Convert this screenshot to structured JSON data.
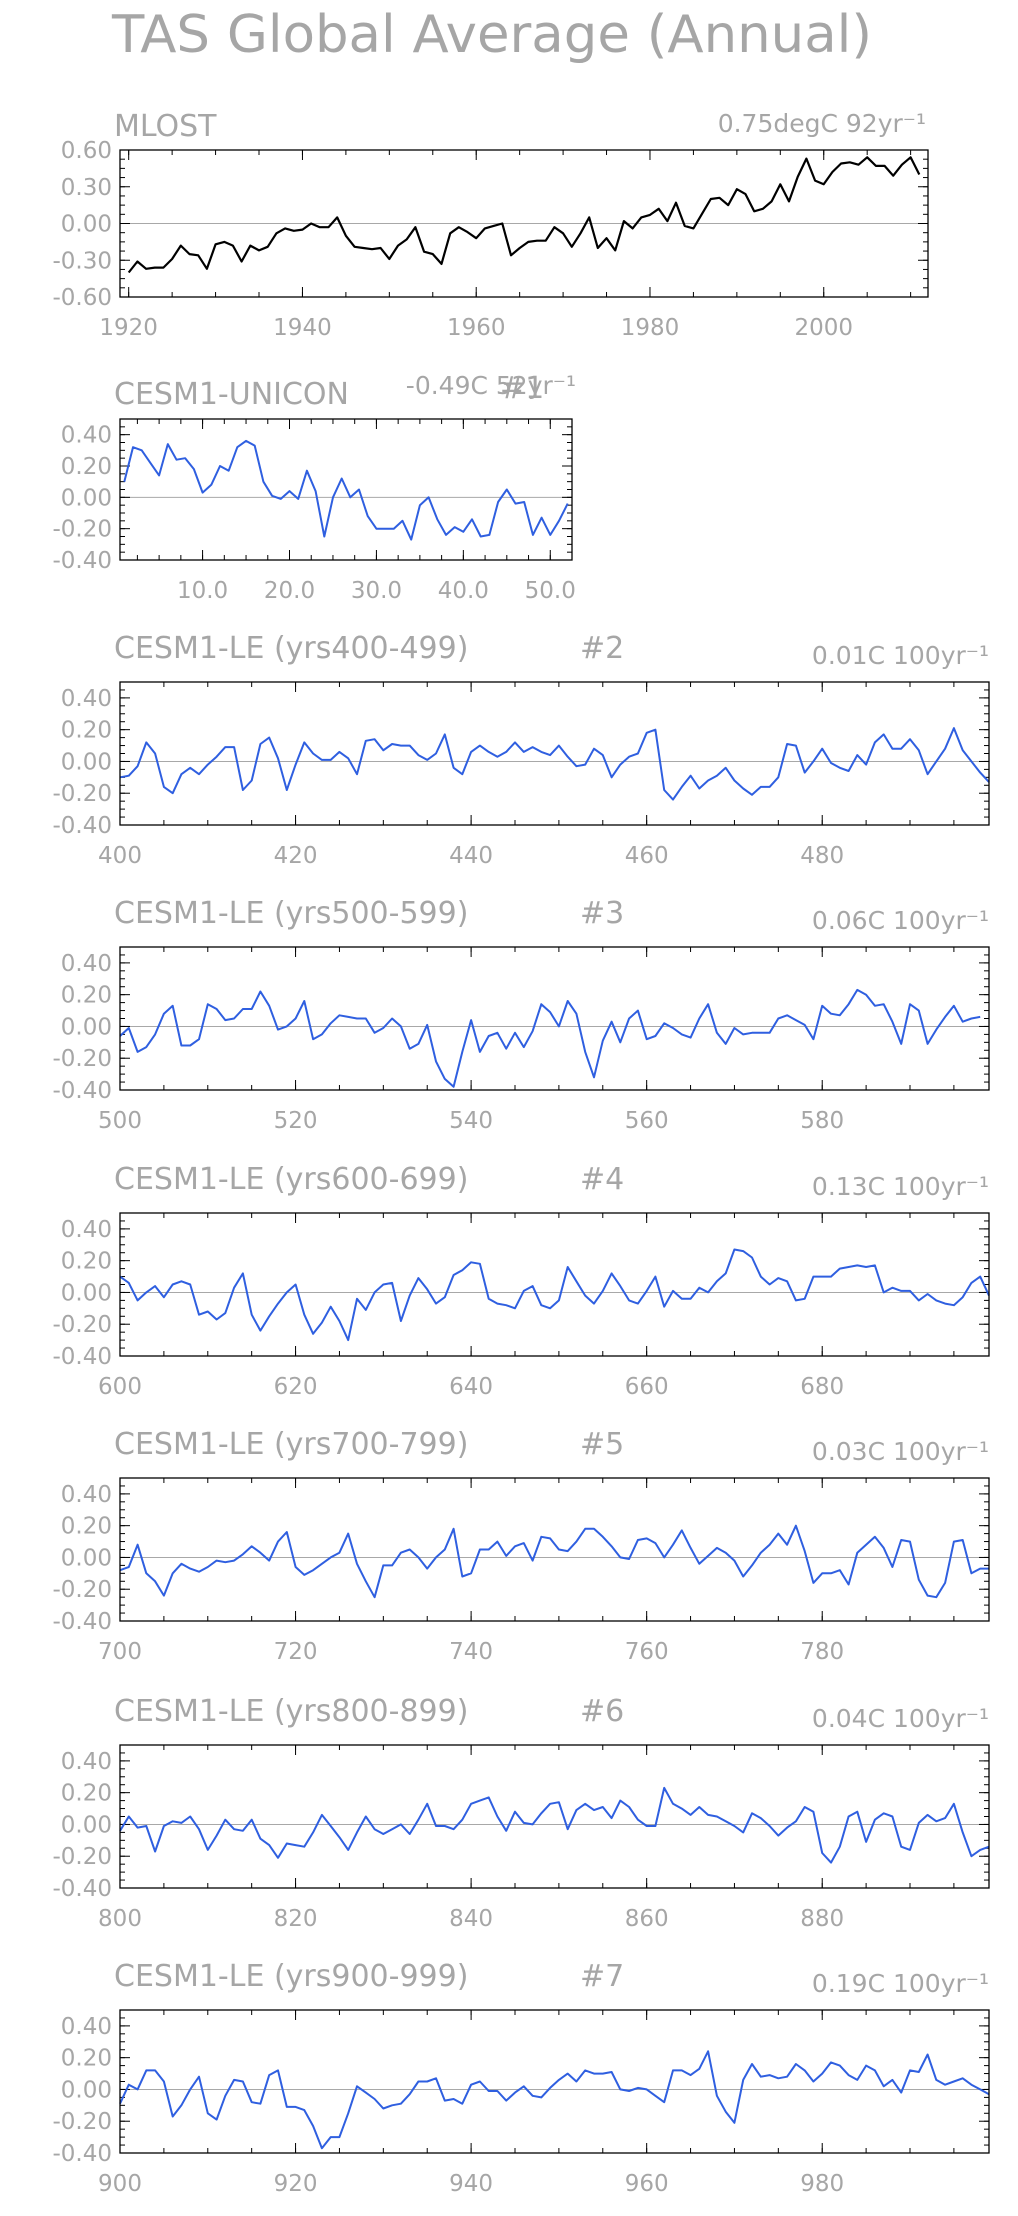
{
  "figure": {
    "title": "TAS Global Average (Annual)"
  },
  "colors": {
    "obs_line": "#000000",
    "model_line": "#2f5fe0",
    "zero_line": "#a8a8a8",
    "text": "#a6a6a6"
  },
  "chart_data": [
    {
      "type": "line",
      "name": "MLOST",
      "trend_label": "0.75degC 92yr⁻¹",
      "xlim": [
        1919,
        2012
      ],
      "ylim": [
        -0.6,
        0.6
      ],
      "xticks": [
        1920,
        1940,
        1960,
        1980,
        2000
      ],
      "xtick_labels": [
        "1920",
        "1940",
        "1960",
        "1980",
        "2000"
      ],
      "yticks": [
        -0.6,
        -0.3,
        0.0,
        0.3,
        0.6
      ],
      "ytick_labels": [
        "-0.60",
        "-0.30",
        "0.00",
        "0.30",
        "0.60"
      ],
      "x_start": 1920,
      "x_step": 1,
      "color": "#000000",
      "values": [
        -0.4,
        -0.31,
        -0.37,
        -0.36,
        -0.36,
        -0.29,
        -0.18,
        -0.25,
        -0.26,
        -0.37,
        -0.17,
        -0.15,
        -0.18,
        -0.31,
        -0.18,
        -0.22,
        -0.19,
        -0.08,
        -0.04,
        -0.06,
        -0.05,
        0.0,
        -0.03,
        -0.03,
        0.05,
        -0.1,
        -0.19,
        -0.2,
        -0.21,
        -0.2,
        -0.29,
        -0.18,
        -0.13,
        -0.03,
        -0.23,
        -0.25,
        -0.33,
        -0.08,
        -0.03,
        -0.07,
        -0.12,
        -0.04,
        -0.02,
        0.0,
        -0.26,
        -0.2,
        -0.15,
        -0.14,
        -0.14,
        -0.03,
        -0.08,
        -0.19,
        -0.08,
        0.05,
        -0.2,
        -0.12,
        -0.22,
        0.02,
        -0.04,
        0.05,
        0.07,
        0.12,
        0.02,
        0.17,
        -0.02,
        -0.04,
        0.08,
        0.2,
        0.21,
        0.15,
        0.28,
        0.24,
        0.1,
        0.12,
        0.18,
        0.32,
        0.18,
        0.38,
        0.53,
        0.35,
        0.32,
        0.42,
        0.49,
        0.5,
        0.48,
        0.54,
        0.47,
        0.47,
        0.39,
        0.48,
        0.54,
        0.4
      ]
    },
    {
      "type": "line",
      "name": "CESM1-UNICON",
      "number_label": "#1",
      "trend_label": "-0.49C 52yr⁻¹",
      "xlim": [
        0.5,
        52.5
      ],
      "ylim": [
        -0.4,
        0.5
      ],
      "xticks": [
        10,
        20,
        30,
        40,
        50
      ],
      "xtick_labels": [
        "10.0",
        "20.0",
        "30.0",
        "40.0",
        "50.0"
      ],
      "yticks": [
        -0.4,
        -0.2,
        0.0,
        0.2,
        0.4
      ],
      "ytick_labels": [
        "-0.40",
        "-0.20",
        "0.00",
        "0.20",
        "0.40"
      ],
      "x_start": 1,
      "x_step": 1,
      "color": "#2f5fe0",
      "values": [
        0.1,
        0.32,
        0.3,
        0.22,
        0.14,
        0.34,
        0.24,
        0.25,
        0.18,
        0.03,
        0.08,
        0.2,
        0.17,
        0.32,
        0.36,
        0.33,
        0.1,
        0.01,
        -0.01,
        0.04,
        -0.01,
        0.17,
        0.04,
        -0.25,
        0.0,
        0.12,
        0.0,
        0.05,
        -0.12,
        -0.2,
        -0.2,
        -0.2,
        -0.15,
        -0.27,
        -0.05,
        0.0,
        -0.14,
        -0.24,
        -0.19,
        -0.22,
        -0.14,
        -0.25,
        -0.24,
        -0.03,
        0.05,
        -0.04,
        -0.03,
        -0.24,
        -0.13,
        -0.24,
        -0.15,
        -0.04
      ]
    },
    {
      "type": "line",
      "name": "CESM1-LE (yrs400-499)",
      "number_label": "#2",
      "trend_label": "0.01C 100yr⁻¹",
      "xlim": [
        400,
        499
      ],
      "ylim": [
        -0.4,
        0.5
      ],
      "xticks": [
        400,
        420,
        440,
        460,
        480
      ],
      "xtick_labels": [
        "400",
        "420",
        "440",
        "460",
        "480"
      ],
      "yticks": [
        -0.4,
        -0.2,
        0.0,
        0.2,
        0.4
      ],
      "ytick_labels": [
        "-0.40",
        "-0.20",
        "0.00",
        "0.20",
        "0.40"
      ],
      "x_start": 400,
      "x_step": 1,
      "color": "#2f5fe0",
      "values": [
        -0.1,
        -0.09,
        -0.03,
        0.12,
        0.05,
        -0.16,
        -0.2,
        -0.08,
        -0.04,
        -0.08,
        -0.02,
        0.03,
        0.09,
        0.09,
        -0.18,
        -0.12,
        0.11,
        0.15,
        0.02,
        -0.18,
        -0.02,
        0.12,
        0.05,
        0.01,
        0.01,
        0.06,
        0.02,
        -0.08,
        0.13,
        0.14,
        0.07,
        0.11,
        0.1,
        0.1,
        0.04,
        0.01,
        0.05,
        0.17,
        -0.04,
        -0.08,
        0.06,
        0.1,
        0.06,
        0.03,
        0.06,
        0.12,
        0.06,
        0.09,
        0.06,
        0.04,
        0.1,
        0.03,
        -0.03,
        -0.02,
        0.08,
        0.04,
        -0.1,
        -0.02,
        0.03,
        0.05,
        0.18,
        0.2,
        -0.18,
        -0.24,
        -0.16,
        -0.09,
        -0.17,
        -0.12,
        -0.09,
        -0.04,
        -0.12,
        -0.17,
        -0.21,
        -0.16,
        -0.16,
        -0.1,
        0.11,
        0.1,
        -0.07,
        0.0,
        0.08,
        -0.01,
        -0.04,
        -0.06,
        0.04,
        -0.02,
        0.12,
        0.17,
        0.08,
        0.08,
        0.14,
        0.07,
        -0.08,
        0.0,
        0.08,
        0.21,
        0.07,
        0.0,
        -0.07,
        -0.13
      ]
    },
    {
      "type": "line",
      "name": "CESM1-LE (yrs500-599)",
      "number_label": "#3",
      "trend_label": "0.06C 100yr⁻¹",
      "xlim": [
        500,
        599
      ],
      "ylim": [
        -0.4,
        0.5
      ],
      "xticks": [
        500,
        520,
        540,
        560,
        580
      ],
      "xtick_labels": [
        "500",
        "520",
        "540",
        "560",
        "580"
      ],
      "yticks": [
        -0.4,
        -0.2,
        0.0,
        0.2,
        0.4
      ],
      "ytick_labels": [
        "-0.40",
        "-0.20",
        "0.00",
        "0.20",
        "0.40"
      ],
      "x_start": 500,
      "x_step": 1,
      "color": "#2f5fe0",
      "values": [
        -0.06,
        -0.01,
        -0.16,
        -0.13,
        -0.05,
        0.08,
        0.13,
        -0.12,
        -0.12,
        -0.08,
        0.14,
        0.11,
        0.04,
        0.05,
        0.11,
        0.11,
        0.22,
        0.13,
        -0.02,
        0.0,
        0.05,
        0.16,
        -0.08,
        -0.05,
        0.02,
        0.07,
        0.06,
        0.05,
        0.05,
        -0.04,
        -0.01,
        0.05,
        0.0,
        -0.14,
        -0.11,
        0.01,
        -0.22,
        -0.33,
        -0.38,
        -0.16,
        0.04,
        -0.16,
        -0.06,
        -0.04,
        -0.14,
        -0.04,
        -0.13,
        -0.03,
        0.14,
        0.09,
        0.0,
        0.16,
        0.08,
        -0.16,
        -0.32,
        -0.09,
        0.03,
        -0.1,
        0.05,
        0.1,
        -0.08,
        -0.06,
        0.02,
        -0.01,
        -0.05,
        -0.07,
        0.05,
        0.14,
        -0.04,
        -0.11,
        -0.01,
        -0.05,
        -0.04,
        -0.04,
        -0.04,
        0.05,
        0.07,
        0.04,
        0.01,
        -0.08,
        0.13,
        0.08,
        0.07,
        0.14,
        0.23,
        0.2,
        0.13,
        0.14,
        0.03,
        -0.11,
        0.14,
        0.1,
        -0.11,
        -0.02,
        0.06,
        0.13,
        0.03,
        0.05,
        0.06
      ]
    },
    {
      "type": "line",
      "name": "CESM1-LE (yrs600-699)",
      "number_label": "#4",
      "trend_label": "0.13C 100yr⁻¹",
      "xlim": [
        600,
        699
      ],
      "ylim": [
        -0.4,
        0.5
      ],
      "xticks": [
        600,
        620,
        640,
        660,
        680
      ],
      "xtick_labels": [
        "600",
        "620",
        "640",
        "660",
        "680"
      ],
      "yticks": [
        -0.4,
        -0.2,
        0.0,
        0.2,
        0.4
      ],
      "ytick_labels": [
        "-0.40",
        "-0.20",
        "0.00",
        "0.20",
        "0.40"
      ],
      "x_start": 600,
      "x_step": 1,
      "color": "#2f5fe0",
      "values": [
        0.1,
        0.06,
        -0.05,
        0.0,
        0.04,
        -0.03,
        0.05,
        0.07,
        0.05,
        -0.14,
        -0.12,
        -0.17,
        -0.13,
        0.03,
        0.12,
        -0.14,
        -0.24,
        -0.15,
        -0.07,
        0.0,
        0.05,
        -0.14,
        -0.26,
        -0.19,
        -0.09,
        -0.18,
        -0.3,
        -0.04,
        -0.11,
        0.0,
        0.05,
        0.06,
        -0.18,
        -0.02,
        0.09,
        0.02,
        -0.07,
        -0.03,
        0.11,
        0.14,
        0.19,
        0.18,
        -0.04,
        -0.07,
        -0.08,
        -0.1,
        0.01,
        0.04,
        -0.08,
        -0.1,
        -0.05,
        0.16,
        0.07,
        -0.02,
        -0.07,
        0.01,
        0.12,
        0.04,
        -0.05,
        -0.07,
        0.01,
        0.1,
        -0.09,
        0.01,
        -0.04,
        -0.04,
        0.03,
        0.0,
        0.07,
        0.12,
        0.27,
        0.26,
        0.22,
        0.1,
        0.05,
        0.09,
        0.07,
        -0.05,
        -0.04,
        0.1,
        0.1,
        0.1,
        0.15,
        0.16,
        0.17,
        0.16,
        0.17,
        0.0,
        0.03,
        0.01,
        0.01,
        -0.05,
        -0.01,
        -0.05,
        -0.07,
        -0.08,
        -0.03,
        0.06,
        0.1,
        -0.02
      ]
    },
    {
      "type": "line",
      "name": "CESM1-LE (yrs700-799)",
      "number_label": "#5",
      "trend_label": "0.03C 100yr⁻¹",
      "xlim": [
        700,
        799
      ],
      "ylim": [
        -0.4,
        0.5
      ],
      "xticks": [
        700,
        720,
        740,
        760,
        780
      ],
      "xtick_labels": [
        "700",
        "720",
        "740",
        "760",
        "780"
      ],
      "yticks": [
        -0.4,
        -0.2,
        0.0,
        0.2,
        0.4
      ],
      "ytick_labels": [
        "-0.40",
        "-0.20",
        "0.00",
        "0.20",
        "0.40"
      ],
      "x_start": 700,
      "x_step": 1,
      "color": "#2f5fe0",
      "values": [
        -0.08,
        -0.06,
        0.08,
        -0.1,
        -0.15,
        -0.24,
        -0.1,
        -0.04,
        -0.07,
        -0.09,
        -0.06,
        -0.02,
        -0.03,
        -0.02,
        0.02,
        0.07,
        0.03,
        -0.02,
        0.1,
        0.16,
        -0.06,
        -0.11,
        -0.08,
        -0.04,
        0.0,
        0.03,
        0.15,
        -0.04,
        -0.15,
        -0.25,
        -0.05,
        -0.05,
        0.03,
        0.05,
        0.0,
        -0.07,
        0.0,
        0.05,
        0.18,
        -0.12,
        -0.1,
        0.05,
        0.05,
        0.1,
        0.01,
        0.07,
        0.09,
        -0.02,
        0.13,
        0.12,
        0.05,
        0.04,
        0.1,
        0.18,
        0.18,
        0.13,
        0.07,
        0.0,
        -0.01,
        0.11,
        0.12,
        0.09,
        0.0,
        0.08,
        0.17,
        0.06,
        -0.04,
        0.01,
        0.06,
        0.03,
        -0.02,
        -0.12,
        -0.05,
        0.03,
        0.08,
        0.15,
        0.08,
        0.2,
        0.04,
        -0.16,
        -0.1,
        -0.1,
        -0.08,
        -0.17,
        0.03,
        0.08,
        0.13,
        0.06,
        -0.06,
        0.11,
        0.1,
        -0.14,
        -0.24,
        -0.25,
        -0.16,
        0.1,
        0.11,
        -0.1,
        -0.07,
        -0.07
      ]
    },
    {
      "type": "line",
      "name": "CESM1-LE (yrs800-899)",
      "number_label": "#6",
      "trend_label": "0.04C 100yr⁻¹",
      "xlim": [
        800,
        899
      ],
      "ylim": [
        -0.4,
        0.5
      ],
      "xticks": [
        800,
        820,
        840,
        860,
        880
      ],
      "xtick_labels": [
        "800",
        "820",
        "840",
        "860",
        "880"
      ],
      "yticks": [
        -0.4,
        -0.2,
        0.0,
        0.2,
        0.4
      ],
      "ytick_labels": [
        "-0.40",
        "-0.20",
        "0.00",
        "0.20",
        "0.40"
      ],
      "x_start": 800,
      "x_step": 1,
      "color": "#2f5fe0",
      "values": [
        -0.04,
        0.05,
        -0.02,
        -0.01,
        -0.17,
        -0.01,
        0.02,
        0.01,
        0.05,
        -0.03,
        -0.16,
        -0.07,
        0.03,
        -0.03,
        -0.04,
        0.03,
        -0.09,
        -0.13,
        -0.21,
        -0.12,
        -0.13,
        -0.14,
        -0.05,
        0.06,
        -0.01,
        -0.08,
        -0.16,
        -0.05,
        0.05,
        -0.03,
        -0.06,
        -0.03,
        0.0,
        -0.06,
        0.03,
        0.13,
        -0.01,
        -0.01,
        -0.03,
        0.03,
        0.13,
        0.15,
        0.17,
        0.05,
        -0.04,
        0.08,
        0.01,
        0.0,
        0.07,
        0.13,
        0.14,
        -0.03,
        0.09,
        0.13,
        0.09,
        0.11,
        0.04,
        0.15,
        0.11,
        0.03,
        -0.01,
        -0.01,
        0.23,
        0.13,
        0.1,
        0.06,
        0.11,
        0.06,
        0.05,
        0.02,
        -0.01,
        -0.05,
        0.07,
        0.04,
        -0.01,
        -0.07,
        -0.02,
        0.02,
        0.11,
        0.08,
        -0.18,
        -0.24,
        -0.14,
        0.05,
        0.08,
        -0.11,
        0.03,
        0.07,
        0.05,
        -0.14,
        -0.16,
        0.01,
        0.06,
        0.02,
        0.04,
        0.13,
        -0.05,
        -0.2,
        -0.16,
        -0.14
      ]
    },
    {
      "type": "line",
      "name": "CESM1-LE (yrs900-999)",
      "number_label": "#7",
      "trend_label": "0.19C 100yr⁻¹",
      "xlim": [
        900,
        999
      ],
      "ylim": [
        -0.4,
        0.5
      ],
      "xticks": [
        900,
        920,
        940,
        960,
        980
      ],
      "xtick_labels": [
        "900",
        "920",
        "940",
        "960",
        "980"
      ],
      "yticks": [
        -0.4,
        -0.2,
        0.0,
        0.2,
        0.4
      ],
      "ytick_labels": [
        "-0.40",
        "-0.20",
        "0.00",
        "0.20",
        "0.40"
      ],
      "x_start": 900,
      "x_step": 1,
      "color": "#2f5fe0",
      "values": [
        -0.09,
        0.03,
        0.0,
        0.12,
        0.12,
        0.05,
        -0.17,
        -0.1,
        0.0,
        0.08,
        -0.15,
        -0.19,
        -0.04,
        0.06,
        0.05,
        -0.08,
        -0.09,
        0.09,
        0.12,
        -0.11,
        -0.11,
        -0.13,
        -0.23,
        -0.37,
        -0.3,
        -0.3,
        -0.15,
        0.02,
        -0.02,
        -0.06,
        -0.12,
        -0.1,
        -0.09,
        -0.03,
        0.05,
        0.05,
        0.07,
        -0.07,
        -0.06,
        -0.09,
        0.03,
        0.05,
        -0.01,
        -0.01,
        -0.07,
        -0.02,
        0.02,
        -0.04,
        -0.05,
        0.01,
        0.06,
        0.1,
        0.05,
        0.12,
        0.1,
        0.1,
        0.11,
        0.0,
        -0.01,
        0.01,
        0.0,
        -0.04,
        -0.08,
        0.12,
        0.12,
        0.09,
        0.13,
        0.24,
        -0.04,
        -0.14,
        -0.21,
        0.06,
        0.16,
        0.08,
        0.09,
        0.07,
        0.08,
        0.16,
        0.12,
        0.05,
        0.1,
        0.17,
        0.15,
        0.09,
        0.06,
        0.15,
        0.12,
        0.02,
        0.06,
        -0.02,
        0.12,
        0.11,
        0.22,
        0.06,
        0.03,
        0.05,
        0.07,
        0.03,
        0.0,
        -0.03
      ]
    }
  ]
}
